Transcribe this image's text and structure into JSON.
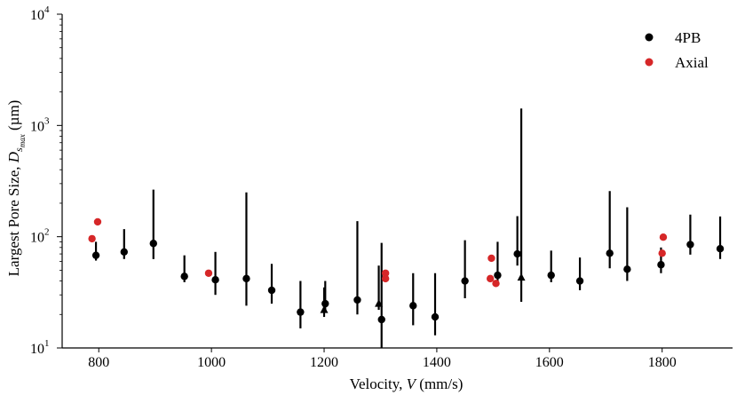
{
  "chart_data": {
    "type": "scatter",
    "title": "",
    "xlabel": {
      "prefix": "Velocity, ",
      "var": "V",
      "suffix": " (mm/s)"
    },
    "ylabel": {
      "prefix": "Largest Pore Size, ",
      "var": "D",
      "sub": "s",
      "subsub": "max",
      "suffix": " (µm)"
    },
    "xlim": [
      735,
      1925
    ],
    "ylim": [
      10,
      10000
    ],
    "yscale": "log",
    "grid": false,
    "legend_position": "top-right",
    "x_ticks": [
      800,
      1000,
      1200,
      1400,
      1600,
      1800
    ],
    "x_tick_labels": [
      "800",
      "1000",
      "1200",
      "1400",
      "1600",
      "1800"
    ],
    "y_ticks": [
      10,
      100,
      1000,
      10000
    ],
    "y_tick_labels": [
      {
        "base": "10",
        "exp": "1"
      },
      {
        "base": "10",
        "exp": "2"
      },
      {
        "base": "10",
        "exp": "3"
      },
      {
        "base": "10",
        "exp": "4"
      }
    ],
    "series": [
      {
        "name": "4PB",
        "color": "#000000",
        "marker": "circle",
        "points": [
          {
            "x": 795,
            "y": 68,
            "lo": 61,
            "hi": 90
          },
          {
            "x": 845,
            "y": 73,
            "lo": 63,
            "hi": 117
          },
          {
            "x": 897,
            "y": 87,
            "lo": 63,
            "hi": 265
          },
          {
            "x": 952,
            "y": 44,
            "lo": 39,
            "hi": 68
          },
          {
            "x": 1007,
            "y": 41,
            "lo": 30,
            "hi": 73
          },
          {
            "x": 1062,
            "y": 42,
            "lo": 24,
            "hi": 250
          },
          {
            "x": 1107,
            "y": 33,
            "lo": 25,
            "hi": 57
          },
          {
            "x": 1158,
            "y": 21,
            "lo": 15,
            "hi": 40
          },
          {
            "x": 1202,
            "y": 25,
            "lo": 21,
            "hi": 40
          },
          {
            "x": 1259,
            "y": 27,
            "lo": 20,
            "hi": 138
          },
          {
            "x": 1302,
            "y": 18,
            "lo": 10,
            "hi": 88
          },
          {
            "x": 1358,
            "y": 24,
            "lo": 16,
            "hi": 47
          },
          {
            "x": 1397,
            "y": 19,
            "lo": 13,
            "hi": 47
          },
          {
            "x": 1450,
            "y": 40,
            "lo": 28,
            "hi": 93
          },
          {
            "x": 1508,
            "y": 45,
            "lo": 37,
            "hi": 90
          },
          {
            "x": 1543,
            "y": 70,
            "lo": 55,
            "hi": 153
          },
          {
            "x": 1603,
            "y": 45,
            "lo": 39,
            "hi": 75
          },
          {
            "x": 1654,
            "y": 40,
            "lo": 33,
            "hi": 65
          },
          {
            "x": 1707,
            "y": 71,
            "lo": 52,
            "hi": 257
          },
          {
            "x": 1738,
            "y": 51,
            "lo": 40,
            "hi": 184
          },
          {
            "x": 1798,
            "y": 56,
            "lo": 47,
            "hi": 80
          },
          {
            "x": 1850,
            "y": 85,
            "lo": 69,
            "hi": 158
          },
          {
            "x": 1903,
            "y": 78,
            "lo": 63,
            "hi": 152
          }
        ],
        "triangles": [
          {
            "x": 1200,
            "y": 22,
            "lo": 19,
            "hi": 35
          },
          {
            "x": 1297,
            "y": 25,
            "lo": 22,
            "hi": 55
          },
          {
            "x": 1550,
            "y": 43,
            "lo": 26,
            "hi": 1420
          }
        ]
      },
      {
        "name": "Axial",
        "color": "#d62728",
        "marker": "circle",
        "points": [
          {
            "x": 788,
            "y": 96
          },
          {
            "x": 798,
            "y": 136
          },
          {
            "x": 995,
            "y": 47
          },
          {
            "x": 1309,
            "y": 47
          },
          {
            "x": 1309,
            "y": 42
          },
          {
            "x": 1495,
            "y": 42
          },
          {
            "x": 1497,
            "y": 64
          },
          {
            "x": 1505,
            "y": 38
          },
          {
            "x": 1800,
            "y": 71
          },
          {
            "x": 1802,
            "y": 99
          }
        ]
      }
    ]
  }
}
